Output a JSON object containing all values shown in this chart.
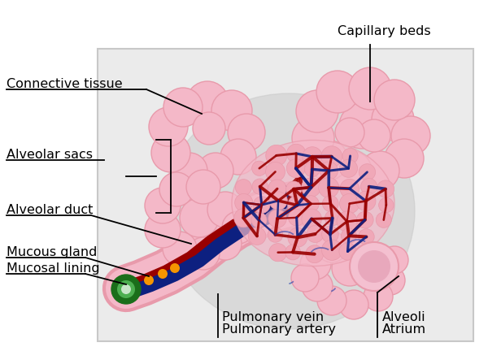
{
  "bg_color": "#ffffff",
  "box_facecolor": "#ebebeb",
  "box_border": "#c8c8c8",
  "pink_light": "#f4b8c8",
  "pink_medium": "#e89aab",
  "pink_darker": "#d4778a",
  "pink_alveoli": "#f0a8b8",
  "red_dark": "#990000",
  "red_bright": "#cc1100",
  "blue_dark": "#0d2080",
  "blue_medium": "#1a3aaa",
  "blue_bright": "#2244cc",
  "green_dark": "#1a6e1a",
  "green_light": "#4caf50",
  "orange": "#f59500",
  "shadow_gray": "#c4c4c4",
  "text_color": "#000000",
  "labels": {
    "capillary_beds": "Capillary beds",
    "connective_tissue": "Connective tissue",
    "alveolar_sacs": "Alveolar sacs",
    "alveolar_duct": "Alveolar duct",
    "mucous_gland": "Mucous gland",
    "mucosal_lining": "Mucosal lining",
    "pulmonary_vein": "Pulmonary vein",
    "pulmonary_artery": "Pulmonary artery",
    "alveoli": "Alveoli",
    "atrium": "Atrium"
  }
}
